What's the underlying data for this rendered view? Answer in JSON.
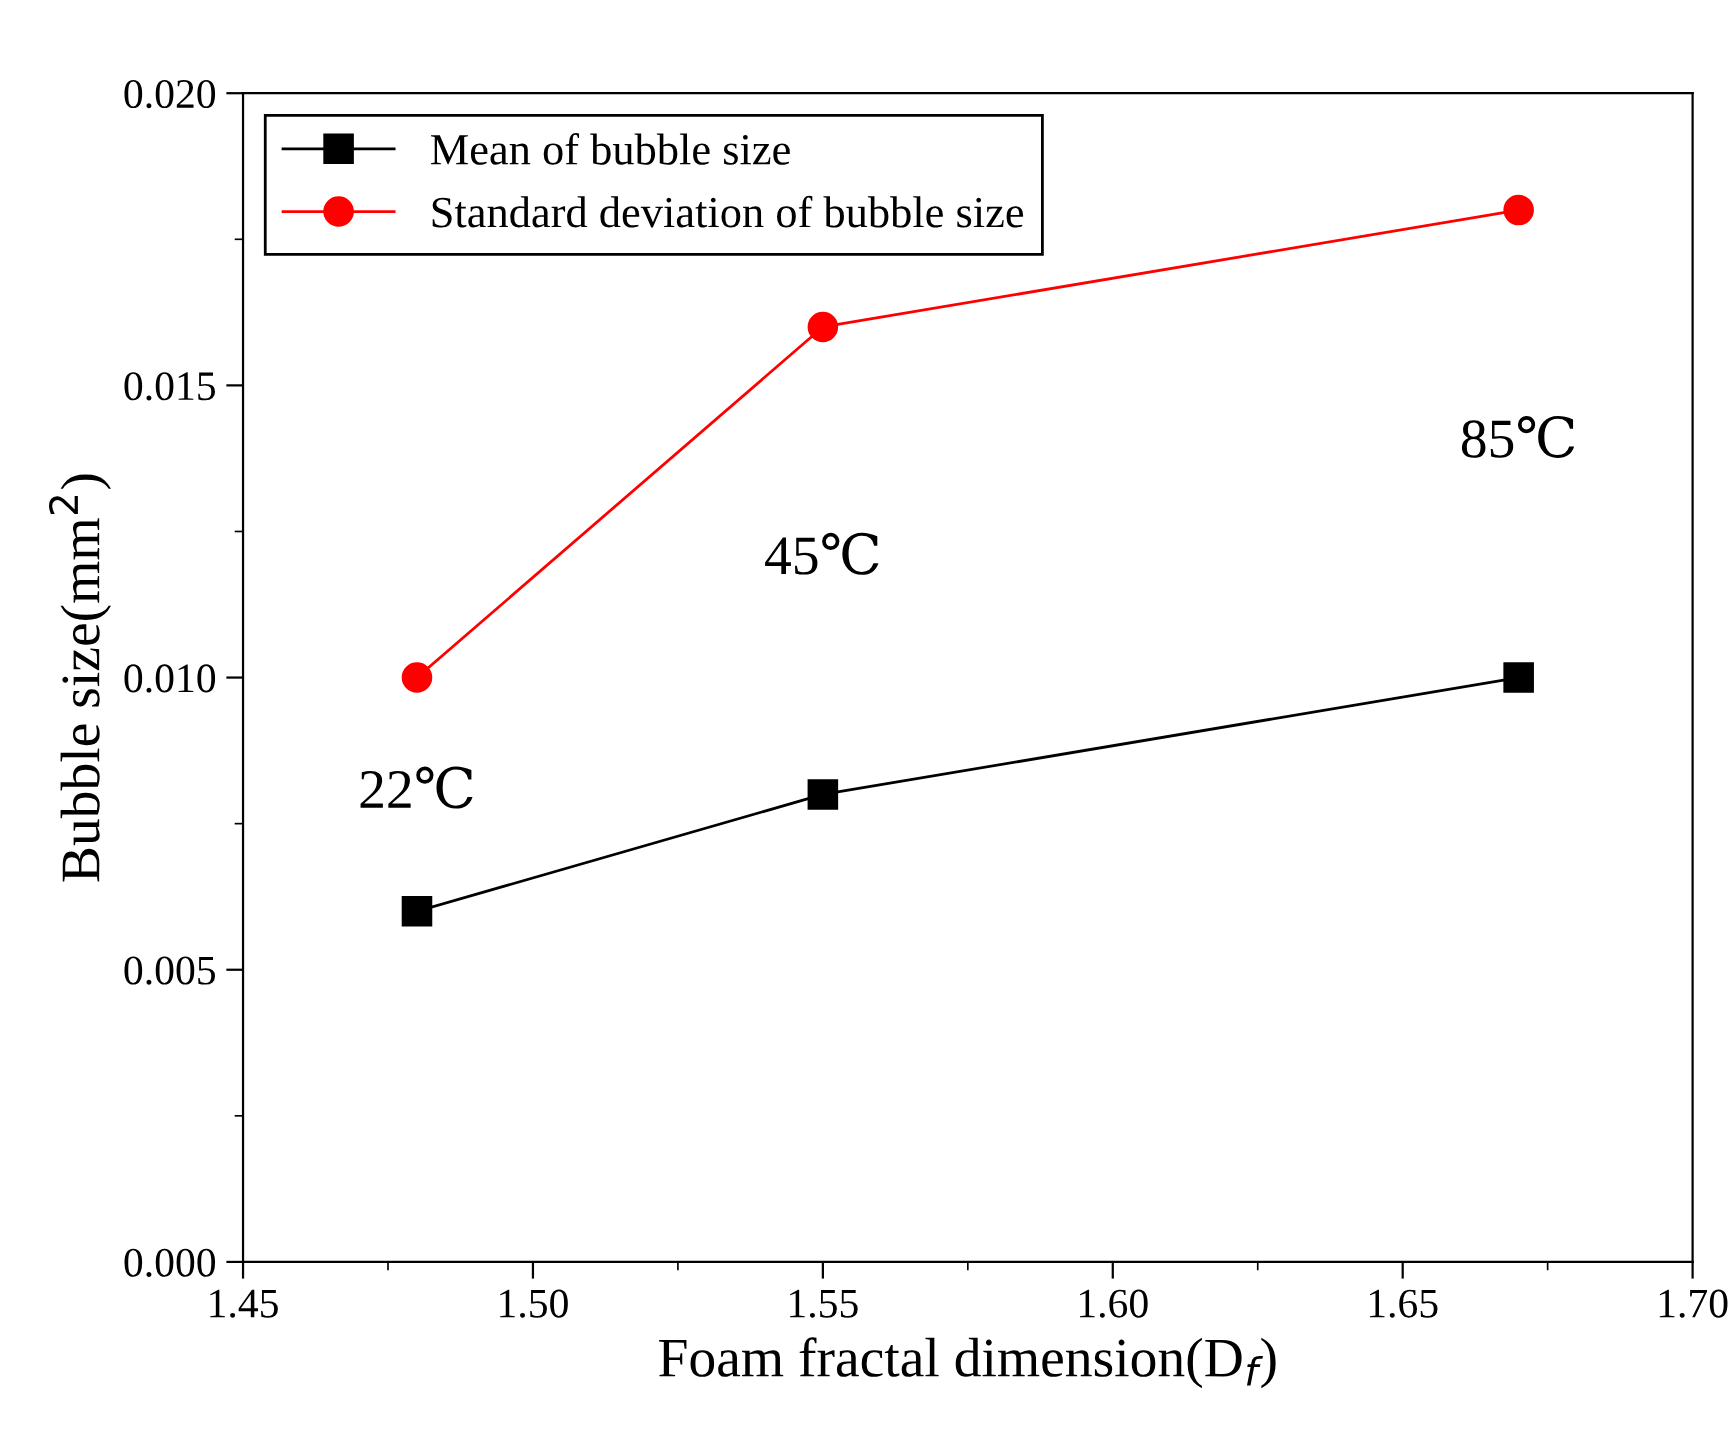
{
  "chart_data": {
    "type": "line",
    "xlabel": "Foam fractal dimension(D$_{f}$)",
    "ylabel": "Bubble size(mm$^{2}$)",
    "x": [
      1.48,
      1.55,
      1.67
    ],
    "series": [
      {
        "name": "Mean of bubble size",
        "color": "#000000",
        "marker": "square",
        "values": [
          0.006,
          0.008,
          0.01
        ]
      },
      {
        "name": "Standard deviation of bubble size",
        "color": "#ff0000",
        "marker": "circle",
        "values": [
          0.01,
          0.016,
          0.018
        ]
      }
    ],
    "xlim": [
      1.45,
      1.7
    ],
    "xticks": [
      1.45,
      {
        "value": 1.5,
        "label": "1.50"
      },
      1.55,
      {
        "value": 1.6,
        "label": "1.60"
      },
      1.65,
      {
        "value": 1.7,
        "label": "1.70"
      }
    ],
    "ylim": [
      0.0,
      0.02
    ],
    "yticks": [
      {
        "value": 0.0,
        "label": "0.000"
      },
      {
        "value": 0.005,
        "label": "0.005"
      },
      {
        "value": 0.01,
        "label": "0.010"
      },
      {
        "value": 0.015,
        "label": "0.015"
      },
      {
        "value": 0.02,
        "label": "0.020"
      }
    ],
    "annotations": [
      "22℃",
      "45℃",
      "85℃"
    ],
    "legend": "top left",
    "grid": false,
    "line_style": "solid"
  }
}
